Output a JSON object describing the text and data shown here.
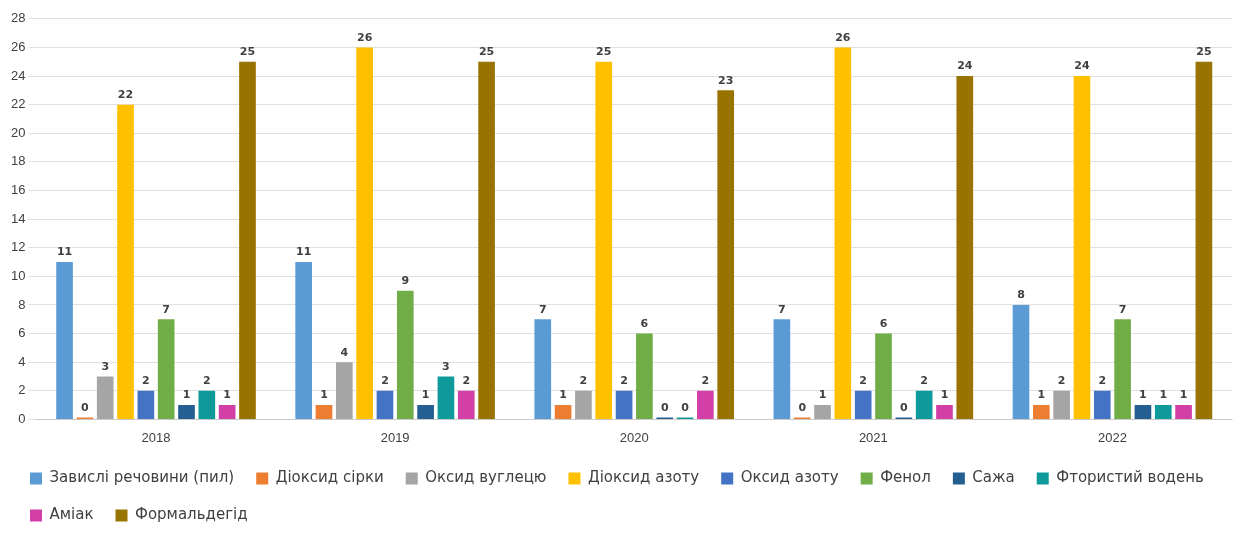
{
  "chart_data": {
    "type": "bar",
    "categories": [
      "2018",
      "2019",
      "2020",
      "2021",
      "2022"
    ],
    "series": [
      {
        "name": "Завислі речовини (пил)",
        "color": "#5b9bd5",
        "values": [
          11,
          11,
          7,
          7,
          8
        ]
      },
      {
        "name": "Діоксид сірки",
        "color": "#ed7d31",
        "values": [
          0,
          1,
          1,
          0,
          1
        ]
      },
      {
        "name": "Оксид вуглецю",
        "color": "#a5a5a5",
        "values": [
          3,
          4,
          2,
          1,
          2
        ]
      },
      {
        "name": "Діоксид азоту",
        "color": "#ffc000",
        "values": [
          22,
          26,
          25,
          26,
          24
        ]
      },
      {
        "name": "Оксид азоту",
        "color": "#4472c4",
        "values": [
          2,
          2,
          2,
          2,
          2
        ]
      },
      {
        "name": "Фенол",
        "color": "#70ad47",
        "values": [
          7,
          9,
          6,
          6,
          7
        ]
      },
      {
        "name": "Сажа",
        "color": "#255e91",
        "values": [
          1,
          1,
          0,
          0,
          1
        ]
      },
      {
        "name": "Фтористий водень",
        "color": "#0e9a9a",
        "values": [
          2,
          3,
          0,
          2,
          1
        ]
      },
      {
        "name": "Аміак",
        "color": "#d23fa6",
        "values": [
          1,
          2,
          2,
          1,
          1
        ]
      },
      {
        "name": "Формальдегід",
        "color": "#997300",
        "values": [
          25,
          25,
          23,
          24,
          25
        ]
      }
    ],
    "ylim": [
      0,
      28
    ],
    "yticks": [
      0,
      2,
      4,
      6,
      8,
      10,
      12,
      14,
      16,
      18,
      20,
      22,
      24,
      26,
      28
    ],
    "grid": "y",
    "legend": "bottom",
    "data_labels": true
  }
}
